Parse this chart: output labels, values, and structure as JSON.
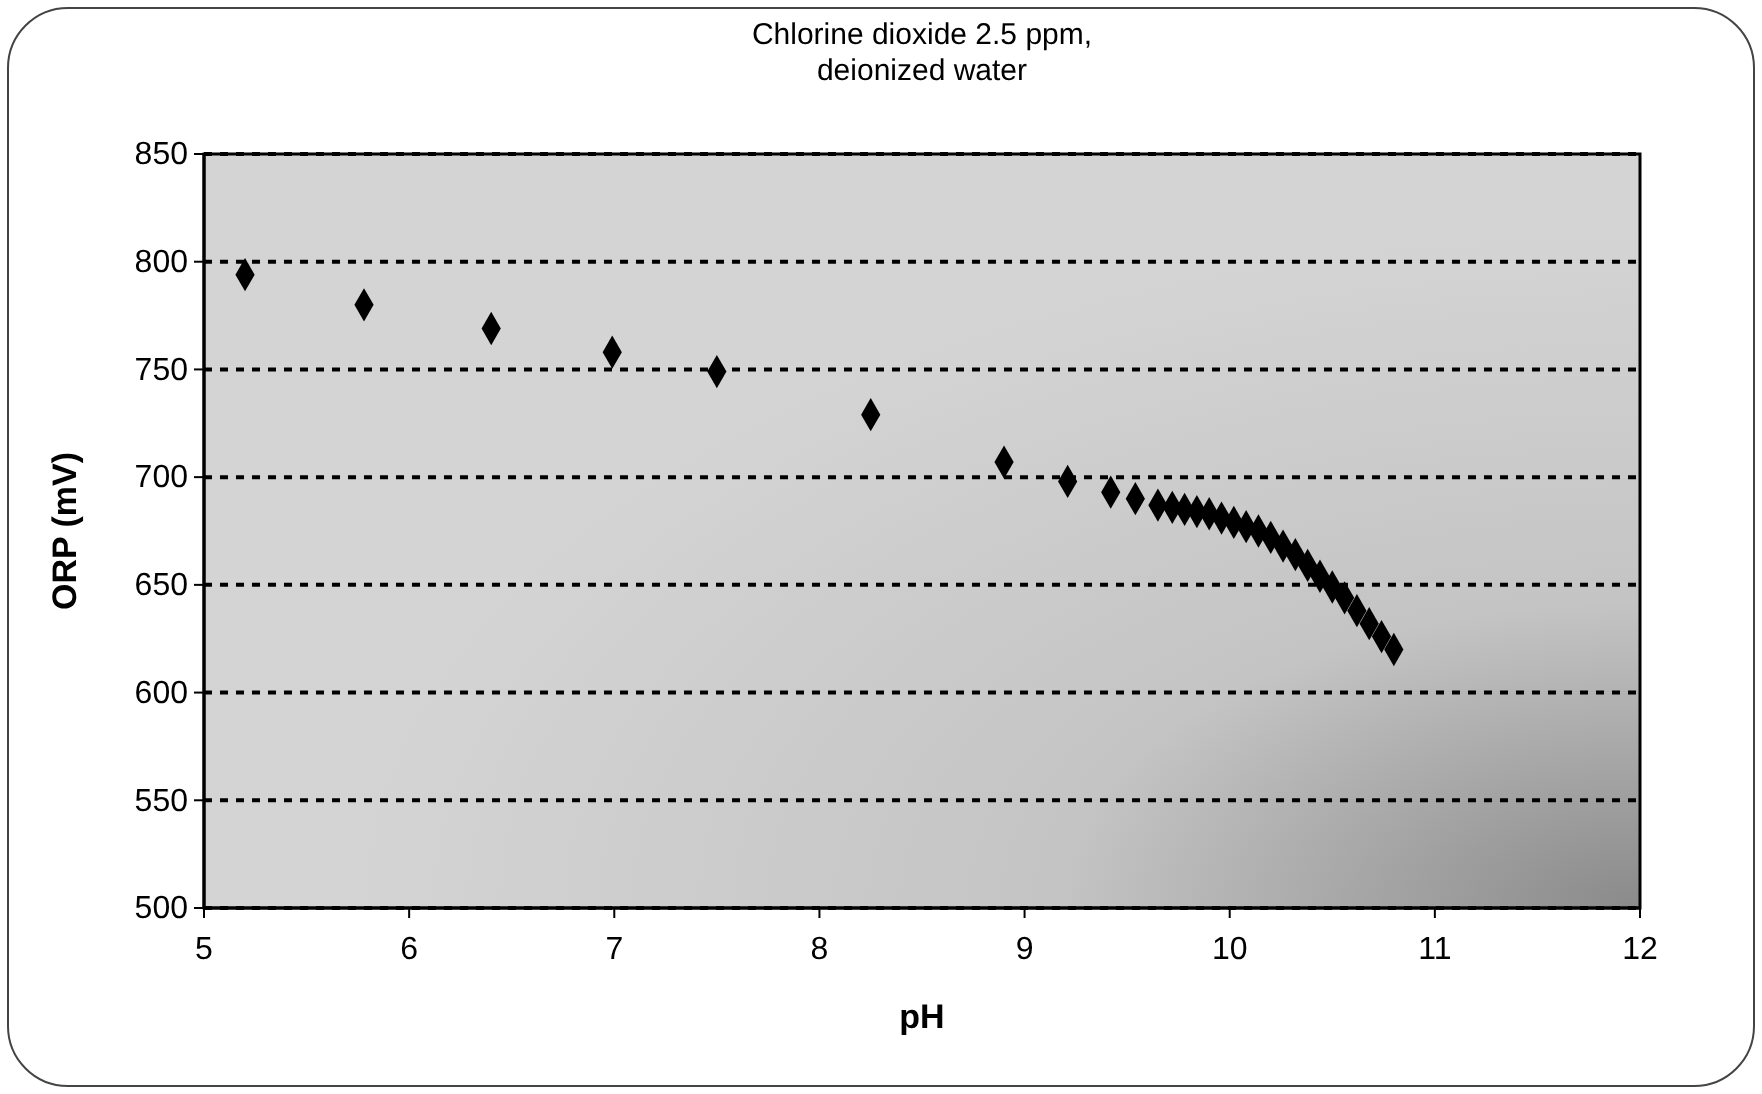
{
  "chart_data": {
    "type": "scatter",
    "title": "Chlorine dioxide 2.5 ppm,\ndeionized water",
    "xlabel": "pH",
    "ylabel": "ORP (mV)",
    "x": [
      5.2,
      5.78,
      6.4,
      6.99,
      7.5,
      8.25,
      8.9,
      9.21,
      9.42,
      9.54,
      9.65,
      9.72,
      9.78,
      9.84,
      9.9,
      9.96,
      10.02,
      10.08,
      10.14,
      10.2,
      10.26,
      10.32,
      10.38,
      10.44,
      10.5,
      10.56,
      10.62,
      10.68,
      10.74,
      10.8
    ],
    "values": [
      794,
      780,
      769,
      758,
      749,
      729,
      707,
      698,
      693,
      690,
      687,
      686,
      685,
      684,
      683,
      681,
      679,
      677,
      675,
      672,
      668,
      664,
      659,
      654,
      649,
      644,
      638,
      632,
      626,
      620
    ],
    "color": "#000000",
    "marker": "diamond",
    "grid": "y",
    "xlim": [
      5,
      12
    ],
    "xticks": [
      5,
      6,
      7,
      8,
      9,
      10,
      11,
      12
    ],
    "ylim": [
      500,
      850
    ],
    "yticks": [
      500,
      550,
      600,
      650,
      700,
      750,
      800,
      850
    ]
  }
}
